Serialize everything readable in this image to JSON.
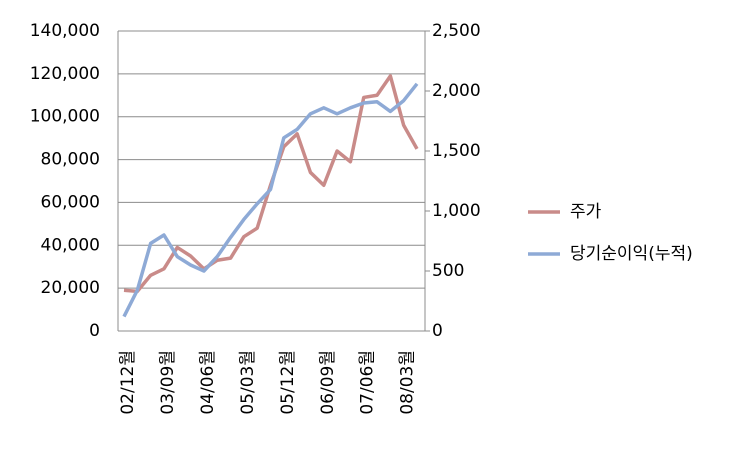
{
  "chart_data": {
    "type": "line",
    "categories": [
      "02/12월",
      null,
      null,
      "03/09월",
      null,
      null,
      "04/06월",
      null,
      null,
      "05/03월",
      null,
      null,
      "05/12월",
      null,
      null,
      "06/09월",
      null,
      null,
      "07/06월",
      null,
      null,
      "08/03월",
      null
    ],
    "series": [
      {
        "name": "주가",
        "color": "#c98b89",
        "values": [
          19000,
          18500,
          26000,
          29000,
          39000,
          35000,
          29000,
          33000,
          34000,
          44000,
          48000,
          68000,
          86000,
          92000,
          74000,
          68000,
          84000,
          79000,
          109000,
          110000,
          119000,
          96000,
          85000
        ]
      },
      {
        "name": "당기순이익(누적)",
        "color": "#8eaad6",
        "axis": "y2",
        "values": [
          120,
          340,
          730,
          800,
          620,
          550,
          500,
          620,
          780,
          930,
          1060,
          1180,
          1610,
          1680,
          1810,
          1860,
          1810,
          1860,
          1900,
          1910,
          1830,
          1920,
          2060
        ]
      }
    ],
    "ylim": [
      0,
      140000
    ],
    "yticks": [
      0,
      {
        "value": 20000,
        "label": "20,000"
      },
      {
        "value": 40000,
        "label": "40,000"
      },
      {
        "value": 60000,
        "label": "60,000"
      },
      {
        "value": 80000,
        "label": "80,000"
      },
      {
        "value": 100000,
        "label": "100,000"
      },
      {
        "value": 120000,
        "label": "120,000"
      },
      {
        "value": 140000,
        "label": "140,000"
      }
    ],
    "y2lim": [
      0,
      2500
    ],
    "y2ticks": [
      0,
      500,
      {
        "value": 1000,
        "label": "1,000"
      },
      {
        "value": 1500,
        "label": "1,500"
      },
      {
        "value": 2000,
        "label": "2,000"
      },
      {
        "value": 2500,
        "label": "2,500"
      }
    ],
    "grid": true,
    "legend": "right"
  }
}
